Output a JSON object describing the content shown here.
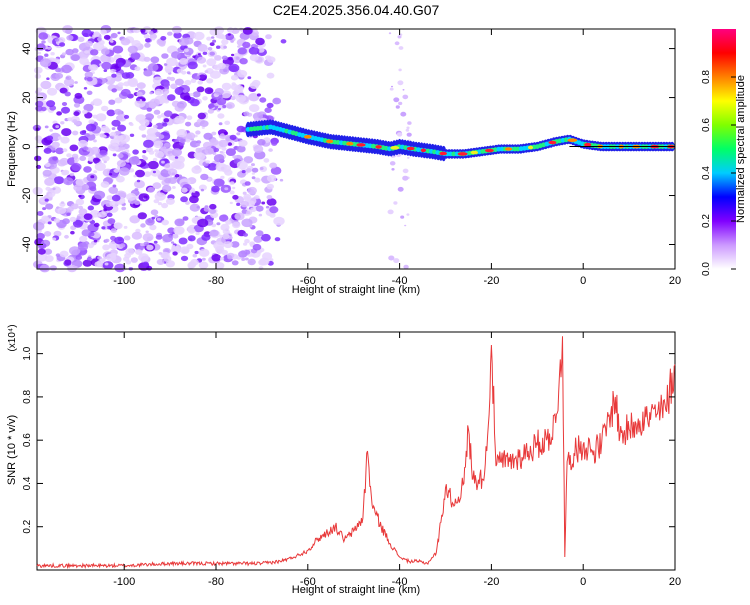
{
  "title": "C2E4.2025.356.04.40.G07",
  "chart_data": [
    {
      "type": "heatmap",
      "xlabel": "Height of straight line (km)",
      "ylabel": "Frequency (Hz)",
      "xlim": [
        -119,
        20
      ],
      "ylim": [
        -50,
        48
      ],
      "xticks": [
        -100,
        -80,
        -60,
        -40,
        -20,
        0,
        20
      ],
      "yticks": [
        -40,
        -20,
        0,
        20,
        40
      ],
      "colorbar": {
        "label": "Normalized spectral amplitude",
        "ticks": [
          0.0,
          0.2,
          0.4,
          0.6,
          0.8
        ],
        "range": [
          0,
          1
        ],
        "colors": [
          "#ffffff",
          "#cc99ff",
          "#8000ff",
          "#0000ff",
          "#00ccff",
          "#00ff66",
          "#80ff00",
          "#ffff00",
          "#ff8000",
          "#ff0000",
          "#ff0080"
        ]
      },
      "signal_trace": {
        "x": [
          -73,
          -68,
          -64,
          -60,
          -55,
          -50,
          -45,
          -42,
          -40,
          -37,
          -33,
          -30,
          -26,
          -22,
          -18,
          -14,
          -10,
          -6,
          -3,
          0,
          4,
          8,
          12,
          16,
          20
        ],
        "y": [
          7,
          8,
          6,
          4,
          2,
          1,
          0,
          -1,
          0,
          -1,
          -2,
          -3,
          -3,
          -2,
          -1,
          -1,
          0,
          2,
          3,
          1,
          0,
          0,
          0,
          0,
          0
        ]
      },
      "noise_region_x": [
        -119,
        -65
      ],
      "sparse_column_x": -40
    },
    {
      "type": "line",
      "xlabel": "Height of straight line (km)",
      "ylabel": "SNR (10 * v/v)",
      "y_multiplier": "(x10⁴)",
      "xlim": [
        -119,
        20
      ],
      "ylim": [
        0,
        1.1
      ],
      "xticks": [
        -100,
        -80,
        -60,
        -40,
        -20,
        0,
        20
      ],
      "yticks": [
        0.2,
        0.4,
        0.6,
        0.8,
        1.0
      ],
      "line_color": "#e8393a",
      "series": [
        {
          "name": "SNR",
          "x": [
            -119,
            -110,
            -100,
            -90,
            -80,
            -70,
            -66,
            -63,
            -60,
            -58,
            -56,
            -54,
            -52,
            -50,
            -48,
            -47,
            -46,
            -44,
            -42,
            -40,
            -38,
            -36,
            -34,
            -32,
            -31,
            -30,
            -28,
            -26,
            -25,
            -24,
            -22,
            -21,
            -20,
            -19,
            -18,
            -16,
            -14,
            -12,
            -10,
            -8,
            -6,
            -4.5,
            -4,
            -3.5,
            -2,
            0,
            2,
            4,
            6,
            7,
            8,
            10,
            12,
            14,
            16,
            18,
            20
          ],
          "values": [
            0.02,
            0.02,
            0.02,
            0.03,
            0.03,
            0.03,
            0.04,
            0.06,
            0.09,
            0.14,
            0.17,
            0.2,
            0.14,
            0.18,
            0.24,
            0.55,
            0.3,
            0.2,
            0.12,
            0.06,
            0.04,
            0.04,
            0.03,
            0.08,
            0.22,
            0.38,
            0.3,
            0.4,
            0.65,
            0.42,
            0.42,
            0.55,
            1.04,
            0.48,
            0.5,
            0.5,
            0.52,
            0.55,
            0.58,
            0.6,
            0.68,
            1.08,
            0.06,
            0.5,
            0.54,
            0.58,
            0.55,
            0.58,
            0.72,
            0.8,
            0.62,
            0.65,
            0.7,
            0.7,
            0.72,
            0.74,
            0.95
          ]
        }
      ]
    }
  ]
}
